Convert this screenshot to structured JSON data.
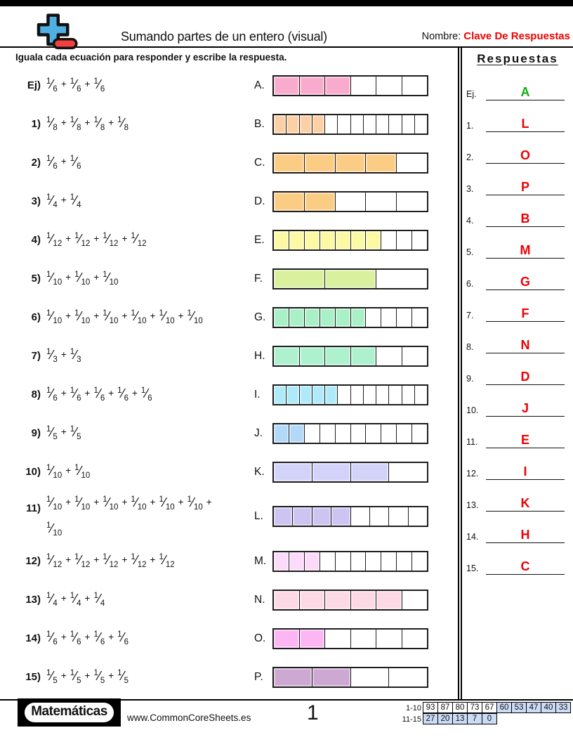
{
  "header": {
    "logo_icon": "plus-minus-icon",
    "title": "Sumando partes de un entero (visual)",
    "name_label": "Nombre:",
    "name_value": "Clave De Respuestas",
    "name_value_color": "#ee0202"
  },
  "instruction": "Iguala cada ecuación para responder y escribe la respuesta.",
  "answers_title": "Respuestas",
  "rows": [
    {
      "num": "Ej)",
      "numerator": "1",
      "count": 3,
      "den": "6",
      "bar": {
        "letter": "A.",
        "cells": 6,
        "filled": 3,
        "color": "#f9abcd"
      }
    },
    {
      "num": "1)",
      "numerator": "1",
      "count": 4,
      "den": "8",
      "bar": {
        "letter": "B.",
        "cells": 12,
        "filled": 4,
        "color": "#fbd0a5"
      }
    },
    {
      "num": "2)",
      "numerator": "1",
      "count": 2,
      "den": "6",
      "bar": {
        "letter": "C.",
        "cells": 5,
        "filled": 4,
        "color": "#fbcc84"
      }
    },
    {
      "num": "3)",
      "numerator": "1",
      "count": 2,
      "den": "4",
      "bar": {
        "letter": "D.",
        "cells": 5,
        "filled": 2,
        "color": "#fbcc84"
      }
    },
    {
      "num": "4)",
      "numerator": "1",
      "count": 4,
      "den": "12",
      "bar": {
        "letter": "E.",
        "cells": 10,
        "filled": 7,
        "color": "#fbf9a3"
      }
    },
    {
      "num": "5)",
      "numerator": "1",
      "count": 3,
      "den": "10",
      "bar": {
        "letter": "F.",
        "cells": 3,
        "filled": 2,
        "color": "#d9f09d"
      }
    },
    {
      "num": "6)",
      "numerator": "1",
      "count": 6,
      "den": "10",
      "bar": {
        "letter": "G.",
        "cells": 10,
        "filled": 6,
        "color": "#a9f0c7"
      }
    },
    {
      "num": "7)",
      "numerator": "1",
      "count": 2,
      "den": "3",
      "bar": {
        "letter": "H.",
        "cells": 6,
        "filled": 4,
        "color": "#adf1ce"
      }
    },
    {
      "num": "8)",
      "numerator": "1",
      "count": 5,
      "den": "6",
      "bar": {
        "letter": "I.",
        "cells": 12,
        "filled": 5,
        "color": "#aeeaf8"
      }
    },
    {
      "num": "9)",
      "numerator": "1",
      "count": 2,
      "den": "5",
      "bar": {
        "letter": "J.",
        "cells": 10,
        "filled": 2,
        "color": "#b2d9f7"
      }
    },
    {
      "num": "10)",
      "numerator": "1",
      "count": 2,
      "den": "10",
      "bar": {
        "letter": "K.",
        "cells": 4,
        "filled": 3,
        "color": "#d3d3f9"
      }
    },
    {
      "num": "11)",
      "numerator": "1",
      "count": 7,
      "den": "10",
      "bar": {
        "letter": "L.",
        "cells": 8,
        "filled": 4,
        "color": "#cdc4f2"
      }
    },
    {
      "num": "12)",
      "numerator": "1",
      "count": 5,
      "den": "12",
      "bar": {
        "letter": "M.",
        "cells": 10,
        "filled": 3,
        "color": "#fbdafa"
      }
    },
    {
      "num": "13)",
      "numerator": "1",
      "count": 3,
      "den": "4",
      "bar": {
        "letter": "N.",
        "cells": 6,
        "filled": 5,
        "color": "#fcd9e5"
      }
    },
    {
      "num": "14)",
      "numerator": "1",
      "count": 4,
      "den": "6",
      "bar": {
        "letter": "O.",
        "cells": 6,
        "filled": 2,
        "color": "#fcb6f4"
      }
    },
    {
      "num": "15)",
      "numerator": "1",
      "count": 4,
      "den": "5",
      "bar": {
        "letter": "P.",
        "cells": 4,
        "filled": 2,
        "color": "#cda8d2"
      }
    }
  ],
  "answers": [
    {
      "n": "Ej.",
      "letter": "A",
      "color": "#0fae10"
    },
    {
      "n": "1.",
      "letter": "L",
      "color": "#f00004"
    },
    {
      "n": "2.",
      "letter": "O",
      "color": "#f00004"
    },
    {
      "n": "3.",
      "letter": "P",
      "color": "#f00004"
    },
    {
      "n": "4.",
      "letter": "B",
      "color": "#f00004"
    },
    {
      "n": "5.",
      "letter": "M",
      "color": "#f00004"
    },
    {
      "n": "6.",
      "letter": "G",
      "color": "#f00004"
    },
    {
      "n": "7.",
      "letter": "F",
      "color": "#f00004"
    },
    {
      "n": "8.",
      "letter": "N",
      "color": "#f00004"
    },
    {
      "n": "9.",
      "letter": "D",
      "color": "#f00004"
    },
    {
      "n": "10.",
      "letter": "J",
      "color": "#f00004"
    },
    {
      "n": "11.",
      "letter": "E",
      "color": "#f00004"
    },
    {
      "n": "12.",
      "letter": "I",
      "color": "#f00004"
    },
    {
      "n": "13.",
      "letter": "K",
      "color": "#f00004"
    },
    {
      "n": "14.",
      "letter": "H",
      "color": "#f00004"
    },
    {
      "n": "15.",
      "letter": "C",
      "color": "#f00004"
    }
  ],
  "footer": {
    "brand": "Matemáticas",
    "website": "www.CommonCoreSheets.es",
    "page": "1",
    "highlight_color": "#ccdcf7",
    "score": [
      {
        "label": "1-10",
        "cells": [
          "93",
          "87",
          "80",
          "73",
          "67",
          "60",
          "53",
          "47",
          "40",
          "33"
        ],
        "highlight_from": 5
      },
      {
        "label": "11-15",
        "cells": [
          "27",
          "20",
          "13",
          "7",
          "0"
        ],
        "highlight_from": 0
      }
    ]
  }
}
